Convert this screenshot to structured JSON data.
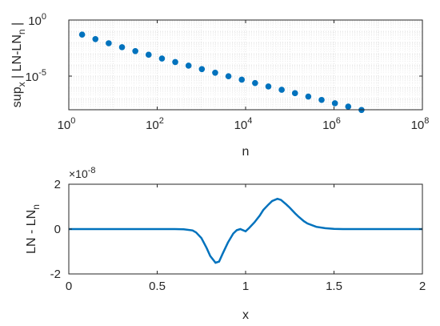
{
  "chart_data": [
    {
      "type": "scatter",
      "xlabel": "n",
      "ylabel_main": "sup",
      "ylabel_sub": "x",
      "ylabel_rest": " | LN-LN",
      "ylabel_sub2": "n",
      "ylabel_end": " |",
      "xscale": "log",
      "yscale": "log",
      "xlim": [
        1,
        100000000
      ],
      "ylim": [
        1e-08,
        1
      ],
      "grid": true,
      "xticks": [
        {
          "base": "10",
          "exp": "0",
          "value": 1
        },
        {
          "base": "10",
          "exp": "2",
          "value": 100
        },
        {
          "base": "10",
          "exp": "4",
          "value": 10000
        },
        {
          "base": "10",
          "exp": "6",
          "value": 1000000
        },
        {
          "base": "10",
          "exp": "8",
          "value": 100000000
        }
      ],
      "yticks": [
        {
          "base": "10",
          "exp": "0",
          "value": 1
        },
        {
          "base": "10",
          "exp": "-5",
          "value": 1e-05
        }
      ],
      "marker_color": "#0072BD",
      "series": [
        {
          "x": [
            2,
            4,
            8,
            16,
            32,
            64,
            128,
            256,
            512,
            1024,
            2048,
            4096,
            8192,
            16384,
            32768,
            65536,
            131072,
            262144,
            524288,
            1048576,
            2097152,
            4194304
          ],
          "y": [
            0.05,
            0.02,
            0.0085,
            0.0038,
            0.0017,
            0.0008,
            0.00037,
            0.00018,
            8.55e-05,
            4.2e-05,
            2e-05,
            9.7e-06,
            4.8e-06,
            2.4e-06,
            1.2e-06,
            6e-07,
            3e-07,
            1.5e-07,
            7.5e-08,
            3.8e-08,
            1.9e-08,
            9.5e-09
          ]
        }
      ]
    },
    {
      "type": "line",
      "xlabel": "x",
      "ylabel": "LN - LN",
      "ylabel_sub": "n",
      "xlim": [
        0,
        2
      ],
      "ylim": [
        -2,
        2
      ],
      "grid": false,
      "exponent_label": "×10",
      "exponent_power": "-8",
      "xtick_labels": [
        "0",
        "0.5",
        "1",
        "1.5",
        "2"
      ],
      "xtick_values": [
        0,
        0.5,
        1,
        1.5,
        2
      ],
      "ytick_labels": [
        "-2",
        "0",
        "2"
      ],
      "ytick_values": [
        -2,
        0,
        2
      ],
      "line_color": "#0072BD",
      "series": [
        {
          "x": [
            0,
            0.6,
            0.65,
            0.7,
            0.72,
            0.75,
            0.78,
            0.8,
            0.83,
            0.85,
            0.87,
            0.9,
            0.93,
            0.95,
            0.97,
            1.0,
            1.02,
            1.05,
            1.08,
            1.1,
            1.13,
            1.15,
            1.18,
            1.2,
            1.23,
            1.25,
            1.28,
            1.3,
            1.33,
            1.35,
            1.4,
            1.45,
            1.5,
            1.55,
            1.6,
            2.0
          ],
          "y": [
            0,
            0,
            -0.01,
            -0.06,
            -0.15,
            -0.4,
            -0.85,
            -1.2,
            -1.5,
            -1.45,
            -1.1,
            -0.6,
            -0.2,
            -0.05,
            0.0,
            -0.1,
            0.05,
            0.3,
            0.6,
            0.85,
            1.1,
            1.25,
            1.35,
            1.3,
            1.1,
            0.95,
            0.7,
            0.55,
            0.35,
            0.25,
            0.1,
            0.04,
            0.01,
            0.0,
            0.0,
            0.0
          ]
        }
      ]
    }
  ]
}
